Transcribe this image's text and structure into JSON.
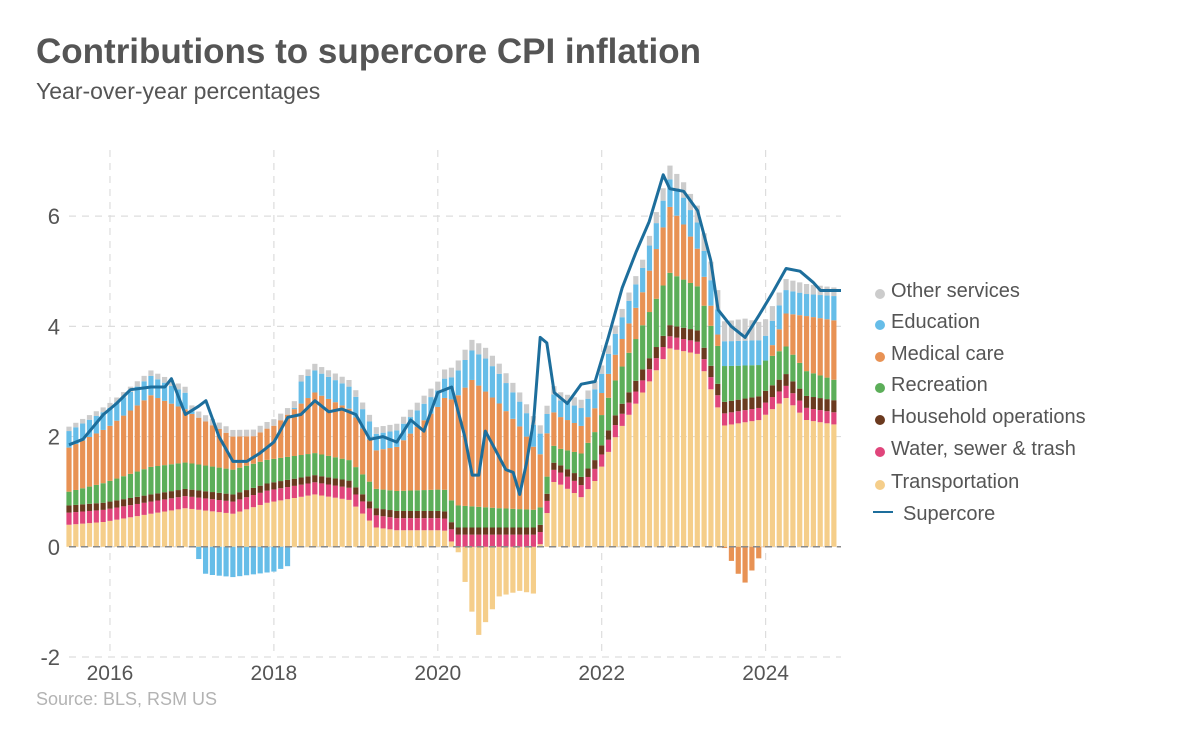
{
  "title": "Contributions to supercore CPI inflation",
  "subtitle": "Year-over-year percentages",
  "source": "Source: BLS, RSM US",
  "chart_data": {
    "type": "bar",
    "stacked": true,
    "title": "Contributions to supercore CPI inflation",
    "subtitle": "Year-over-year percentages",
    "xlabel": "",
    "ylabel": "",
    "xlim": [
      2015.5,
      2024.92
    ],
    "ylim": [
      -2,
      7.2
    ],
    "yticks": [
      -2,
      0,
      2,
      4,
      6
    ],
    "yticklabels": [
      "-2",
      "0",
      "2",
      "4",
      "6"
    ],
    "xticks": [
      2016,
      2018,
      2020,
      2022,
      2024
    ],
    "xticklabels": [
      "2016",
      "2018",
      "2020",
      "2022",
      "2024"
    ],
    "grid": true,
    "legend_position": "right",
    "x_start": 2015.5,
    "x_step": 0.08333,
    "months": 113,
    "series": [
      {
        "name": "Transportation",
        "color": "#f5ce8a",
        "keys": [
          2015.5,
          2015.92,
          2016.5,
          2016.92,
          2017.5,
          2017.92,
          2018.5,
          2018.92,
          2019.25,
          2019.5,
          2019.92,
          2020.08,
          2020.25,
          2020.42,
          2020.5,
          2020.75,
          2021.0,
          2021.17,
          2021.25,
          2021.42,
          2021.75,
          2021.92,
          2022.17,
          2022.5,
          2022.83,
          2023.17,
          2023.5,
          2023.92,
          2024.25,
          2024.5,
          2024.92
        ],
        "vals": [
          0.4,
          0.45,
          0.6,
          0.7,
          0.6,
          0.8,
          0.95,
          0.85,
          0.35,
          0.3,
          0.3,
          0.3,
          -0.1,
          -1.2,
          -1.6,
          -0.9,
          -0.8,
          -0.85,
          0.05,
          1.2,
          0.9,
          1.2,
          2.0,
          2.8,
          3.6,
          3.5,
          2.2,
          2.3,
          2.7,
          2.3,
          2.2
        ]
      },
      {
        "name": "Water, sewer & trash",
        "color": "#e0457b",
        "keys": [
          2015.5,
          2024.92
        ],
        "vals": [
          0.22,
          0.22
        ]
      },
      {
        "name": "Household operations",
        "color": "#6b3a1f",
        "keys": [
          2015.5,
          2021.5,
          2022.5,
          2024.92
        ],
        "vals": [
          0.13,
          0.13,
          0.2,
          0.22
        ]
      },
      {
        "name": "Recreation",
        "color": "#5cae59",
        "keys": [
          2015.5,
          2016.5,
          2017.5,
          2018.5,
          2019.25,
          2020.25,
          2020.75,
          2021.5,
          2022.5,
          2022.83,
          2023.5,
          2024.0,
          2024.5,
          2024.92
        ],
        "vals": [
          0.25,
          0.5,
          0.45,
          0.4,
          0.35,
          0.4,
          0.35,
          0.3,
          0.8,
          0.95,
          0.65,
          0.55,
          0.45,
          0.35
        ]
      },
      {
        "name": "Medical care",
        "color": "#e89254",
        "keys": [
          2015.5,
          2016.0,
          2016.5,
          2017.0,
          2017.5,
          2017.75,
          2018.0,
          2018.5,
          2019.0,
          2019.25,
          2019.5,
          2020.0,
          2020.25,
          2020.42,
          2020.5,
          2020.75,
          2021.0,
          2021.42,
          2021.75,
          2022.0,
          2022.5,
          2022.83,
          2023.0,
          2023.42,
          2023.67,
          2023.75,
          2023.92,
          2024.25,
          2024.5,
          2024.92
        ],
        "vals": [
          0.8,
          1.0,
          1.3,
          0.9,
          0.6,
          0.5,
          0.6,
          1.1,
          0.9,
          0.7,
          0.8,
          1.5,
          2.0,
          2.3,
          2.2,
          1.9,
          1.5,
          0.6,
          0.5,
          0.4,
          0.6,
          1.2,
          1.0,
          0.2,
          -0.5,
          -0.65,
          -0.2,
          0.6,
          1.0,
          1.1
        ]
      },
      {
        "name": "Education",
        "color": "#66bde8",
        "keys": [
          2015.5,
          2016.5,
          2016.92,
          2017.17,
          2017.5,
          2018.0,
          2018.17,
          2018.33,
          2018.92,
          2019.25,
          2020.0,
          2020.33,
          2020.58,
          2021.0,
          2021.5,
          2022.0,
          2022.83,
          2023.5,
          2024.0,
          2024.5,
          2024.92
        ],
        "vals": [
          0.3,
          0.35,
          0.3,
          -0.5,
          -0.55,
          -0.45,
          -0.35,
          0.4,
          0.4,
          0.3,
          0.3,
          0.5,
          0.6,
          0.45,
          0.3,
          0.35,
          0.5,
          0.45,
          0.45,
          0.4,
          0.45
        ]
      },
      {
        "name": "Other services",
        "color": "#cccccc",
        "keys": [
          2015.5,
          2017.5,
          2018.5,
          2019.5,
          2020.5,
          2021.25,
          2022.5,
          2022.83,
          2023.42,
          2023.75,
          2024.25,
          2024.92
        ],
        "vals": [
          0.08,
          0.12,
          0.12,
          0.12,
          0.2,
          0.15,
          0.15,
          0.25,
          0.35,
          0.4,
          0.2,
          0.15
        ]
      }
    ],
    "line": {
      "name": "Supercore",
      "color": "#1d6e9c",
      "keys": [
        2015.5,
        2015.67,
        2015.92,
        2016.08,
        2016.25,
        2016.5,
        2016.67,
        2016.75,
        2016.92,
        2017.08,
        2017.17,
        2017.33,
        2017.5,
        2017.67,
        2017.83,
        2018.0,
        2018.17,
        2018.33,
        2018.5,
        2018.67,
        2018.83,
        2019.0,
        2019.17,
        2019.33,
        2019.5,
        2019.67,
        2019.83,
        2020.0,
        2020.17,
        2020.33,
        2020.42,
        2020.5,
        2020.58,
        2020.67,
        2020.83,
        2020.92,
        2021.0,
        2021.08,
        2021.17,
        2021.25,
        2021.33,
        2021.42,
        2021.58,
        2021.75,
        2021.92,
        2022.08,
        2022.25,
        2022.42,
        2022.58,
        2022.75,
        2022.83,
        2023.0,
        2023.17,
        2023.33,
        2023.42,
        2023.58,
        2023.75,
        2023.92,
        2024.08,
        2024.25,
        2024.42,
        2024.58,
        2024.67,
        2024.75,
        2024.92
      ],
      "vals": [
        1.85,
        1.95,
        2.4,
        2.6,
        2.85,
        2.9,
        2.9,
        3.05,
        2.4,
        2.55,
        2.65,
        2.0,
        1.55,
        1.55,
        1.7,
        1.9,
        2.35,
        2.4,
        2.65,
        2.45,
        2.5,
        2.4,
        1.95,
        2.0,
        1.9,
        2.3,
        2.1,
        2.8,
        2.9,
        2.0,
        1.3,
        1.3,
        2.1,
        1.85,
        1.4,
        1.35,
        0.95,
        1.5,
        2.3,
        3.8,
        3.7,
        2.8,
        2.6,
        2.95,
        3.0,
        3.8,
        4.7,
        5.35,
        5.9,
        6.75,
        6.5,
        6.45,
        6.1,
        5.2,
        4.3,
        4.0,
        3.8,
        4.2,
        4.6,
        5.05,
        5.0,
        4.8,
        4.65,
        4.65,
        4.65
      ]
    }
  }
}
